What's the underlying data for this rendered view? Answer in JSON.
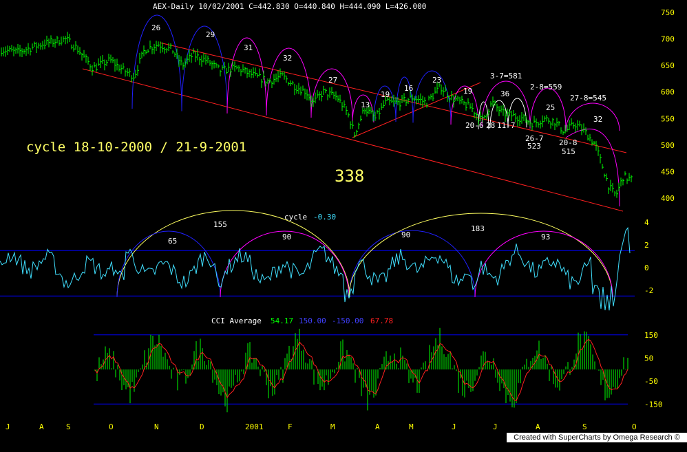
{
  "header": {
    "symbol_line": "AEX-Daily  10/02/2001 C=442.830 O=440.840 H=444.090 L=426.000"
  },
  "annotations": {
    "cycle_label": "cycle 18-10-2000 / 21-9-2001",
    "cycle_days": "338"
  },
  "footer": "Created with SuperCharts by Omega Research © 1997",
  "colors": {
    "background": "#000000",
    "price": "#00ff00",
    "channel": "#ff2020",
    "arc_blue": "#2020ff",
    "arc_magenta": "#ff00ff",
    "arc_white": "#ffffff",
    "arc_yellow": "#ffff60",
    "osc": "#40e0ff",
    "axis_text": "#ffff00",
    "osc_band": "#0000ff"
  },
  "chart_data": [
    {
      "type": "line",
      "panel": "price",
      "title": "AEX-Daily",
      "y_ticks": [
        750,
        700,
        650,
        600,
        550,
        500,
        450,
        400
      ],
      "ylim": [
        375,
        760
      ],
      "x_ticks": [
        "J",
        "A",
        "S",
        "O",
        "N",
        "D",
        "2001",
        "F",
        "M",
        "A",
        "M",
        "J",
        "J",
        "A",
        "S",
        "O"
      ],
      "series": [
        {
          "values": [
            [
              0,
              680
            ],
            [
              25,
              675
            ],
            [
              60,
              690
            ],
            [
              95,
              700
            ],
            [
              110,
              685
            ],
            [
              135,
              645
            ],
            [
              160,
              660
            ],
            [
              180,
              640
            ],
            [
              195,
              630
            ],
            [
              210,
              680
            ],
            [
              230,
              690
            ],
            [
              250,
              680
            ],
            [
              265,
              650
            ],
            [
              280,
              670
            ],
            [
              300,
              660
            ],
            [
              320,
              640
            ],
            [
              345,
              645
            ],
            [
              370,
              630
            ],
            [
              390,
              620
            ],
            [
              410,
              630
            ],
            [
              430,
              610
            ],
            [
              445,
              600
            ],
            [
              455,
              580
            ],
            [
              470,
              600
            ],
            [
              490,
              590
            ],
            [
              505,
              560
            ],
            [
              515,
              520
            ],
            [
              530,
              570
            ],
            [
              545,
              550
            ],
            [
              560,
              580
            ],
            [
              580,
              580
            ],
            [
              600,
              590
            ],
            [
              620,
              580
            ],
            [
              640,
              610
            ],
            [
              655,
              590
            ],
            [
              670,
              580
            ],
            [
              685,
              570
            ],
            [
              700,
              545
            ],
            [
              715,
              580
            ],
            [
              730,
              560
            ],
            [
              745,
              555
            ],
            [
              760,
              550
            ],
            [
              775,
              540
            ],
            [
              790,
              550
            ],
            [
              805,
              545
            ],
            [
              820,
              525
            ],
            [
              835,
              540
            ],
            [
              850,
              525
            ],
            [
              865,
              500
            ],
            [
              875,
              460
            ],
            [
              885,
              420
            ],
            [
              895,
              405
            ],
            [
              905,
              440
            ],
            [
              918,
              435
            ]
          ]
        }
      ],
      "cycle_labels": [
        {
          "text": "26"
        },
        {
          "text": "29"
        },
        {
          "text": "31"
        },
        {
          "text": "32"
        },
        {
          "text": "27"
        },
        {
          "text": "13"
        },
        {
          "text": "19"
        },
        {
          "text": "16"
        },
        {
          "text": "23"
        },
        {
          "text": "19"
        },
        {
          "text": "36"
        },
        {
          "text": "25"
        },
        {
          "text": "32"
        },
        {
          "text": "3-7=581"
        },
        {
          "text": "2-8=559"
        },
        {
          "text": "27-8=545"
        },
        {
          "text": "20-6"
        },
        {
          "text": "28"
        },
        {
          "text": "11-7"
        },
        {
          "text": "26-7"
        },
        {
          "text": "523"
        },
        {
          "text": "20-8"
        },
        {
          "text": "515"
        }
      ]
    },
    {
      "type": "line",
      "panel": "cycle",
      "title": "cycle",
      "current_value": "-0.30",
      "y_ticks": [
        4,
        2,
        0,
        -2
      ],
      "ylim": [
        -3.2,
        4.8
      ],
      "band_levels": [
        1.5,
        -2.5
      ],
      "arc_labels": [
        "155",
        "65",
        "90",
        "90",
        "183",
        "93"
      ]
    },
    {
      "type": "bar",
      "panel": "cci",
      "title": "CCI Average",
      "values_text": {
        "cci": "54.17",
        "upper": "150.00",
        "lower": "-150.00",
        "avg": "67.78"
      },
      "y_ticks": [
        150,
        50,
        -50,
        -150
      ],
      "ylim": [
        -220,
        200
      ],
      "band_levels": [
        150,
        -150
      ]
    }
  ]
}
